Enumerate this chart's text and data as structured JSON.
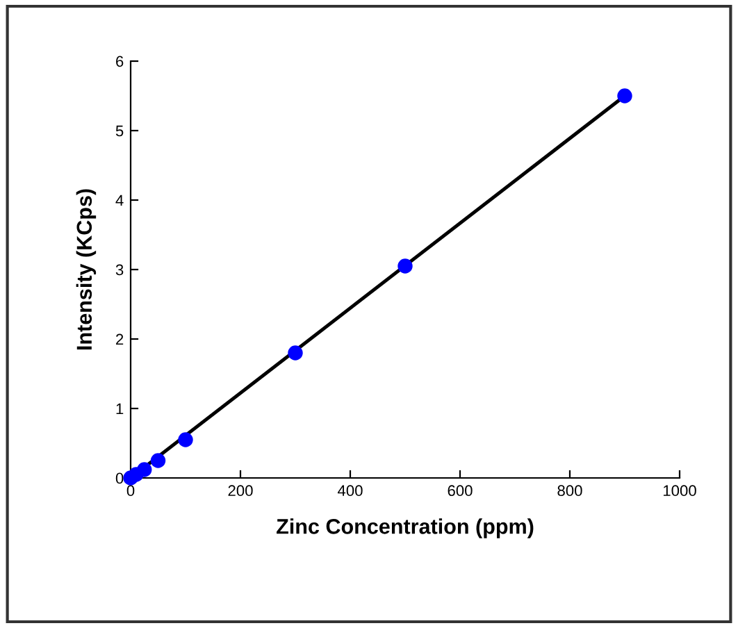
{
  "chart_data": {
    "type": "scatter",
    "xlabel": "Zinc Concentration (ppm)",
    "ylabel": "Intensity (KCps)",
    "xlim": [
      0,
      1000
    ],
    "xticks": [
      0,
      200,
      400,
      600,
      800,
      1000
    ],
    "ylim": [
      0,
      6
    ],
    "yticks": [
      0,
      1,
      2,
      3,
      4,
      5,
      6
    ],
    "grid": false,
    "legend": false,
    "series": [
      {
        "marker": "circle",
        "color": "#0000ff",
        "x": [
          0,
          10,
          25,
          50,
          100,
          300,
          500,
          900
        ],
        "values": [
          0,
          0.05,
          0.12,
          0.25,
          0.55,
          1.8,
          3.05,
          5.5
        ]
      },
      {
        "type": "line",
        "marker": "none",
        "color": "#000000",
        "x": [
          0,
          900
        ],
        "values": [
          0,
          5.5
        ]
      }
    ]
  }
}
